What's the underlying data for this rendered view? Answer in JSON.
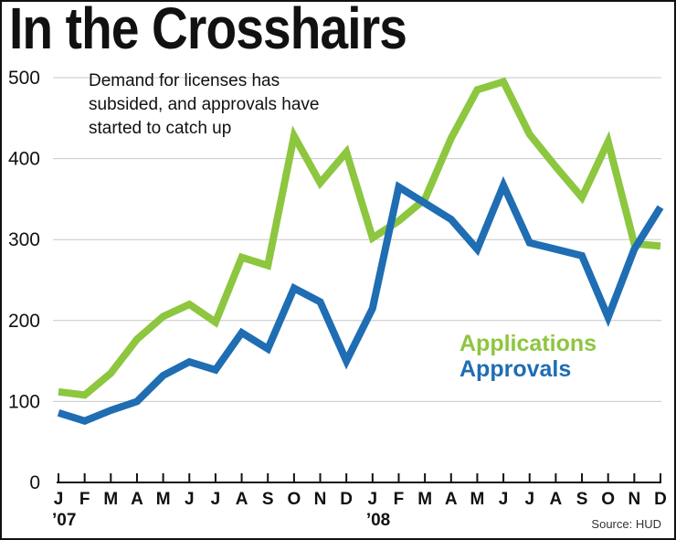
{
  "chart_data": {
    "type": "line",
    "title": "In the Crosshairs",
    "annotation": [
      "Demand for licenses has",
      "subsided, and approvals have",
      "started to catch up"
    ],
    "source": "Source: HUD",
    "categories": [
      "J",
      "F",
      "M",
      "A",
      "M",
      "J",
      "J",
      "A",
      "S",
      "O",
      "N",
      "D",
      "J",
      "F",
      "M",
      "A",
      "M",
      "J",
      "J",
      "A",
      "S",
      "O",
      "N",
      "D"
    ],
    "year_labels": [
      {
        "label": "’07",
        "index": 0
      },
      {
        "label": "’08",
        "index": 12
      }
    ],
    "y_ticks": [
      0,
      100,
      200,
      300,
      400,
      500
    ],
    "ylim": [
      0,
      500
    ],
    "series": [
      {
        "name": "Applications",
        "color": "#8dc63f",
        "values": [
          112,
          108,
          135,
          177,
          205,
          220,
          198,
          278,
          268,
          428,
          370,
          408,
          302,
          323,
          350,
          425,
          485,
          495,
          430,
          390,
          352,
          421,
          295,
          292
        ]
      },
      {
        "name": "Approvals",
        "color": "#1f6db3",
        "values": [
          86,
          76,
          89,
          100,
          132,
          149,
          139,
          185,
          165,
          240,
          223,
          150,
          215,
          365,
          345,
          325,
          288,
          367,
          296,
          288,
          280,
          204,
          288,
          340
        ]
      }
    ]
  }
}
